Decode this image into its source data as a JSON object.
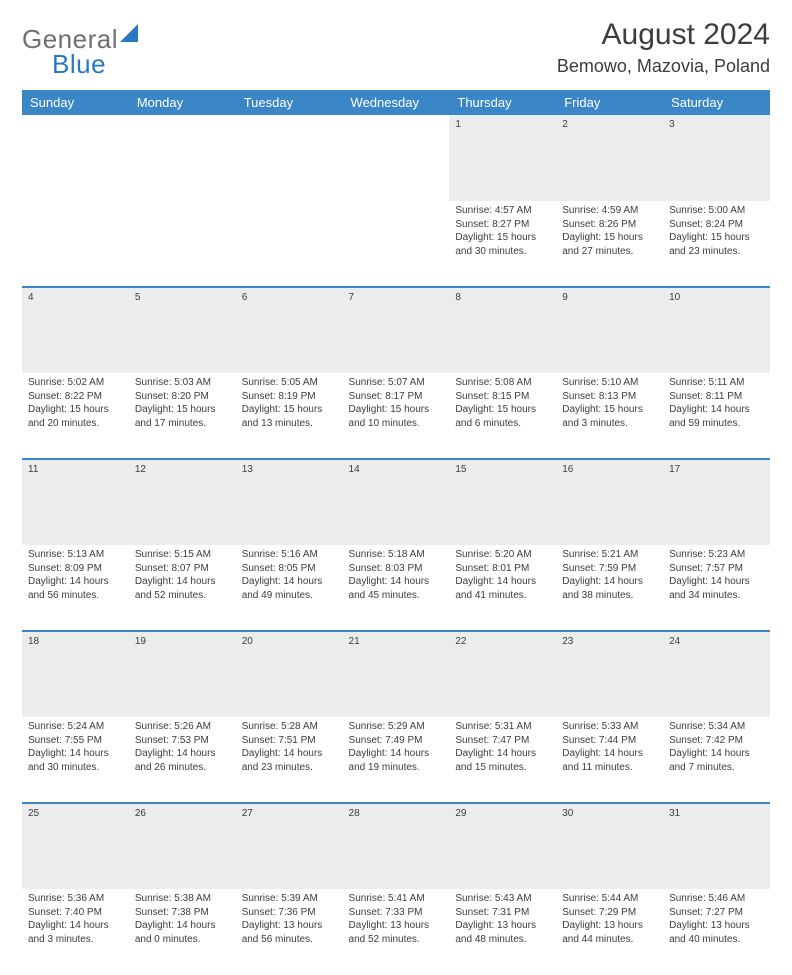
{
  "logo": {
    "part1": "General",
    "part2": "Blue"
  },
  "title": "August 2024",
  "location": "Bemowo, Mazovia, Poland",
  "colors": {
    "header_bg": "#3b86c6",
    "daynum_bg": "#ececec",
    "row_divider": "#3b86c6",
    "text": "#3d3d3d",
    "logo_gray": "#6f6f6f",
    "logo_blue": "#2b78c2",
    "background": "#ffffff"
  },
  "weekdays": [
    "Sunday",
    "Monday",
    "Tuesday",
    "Wednesday",
    "Thursday",
    "Friday",
    "Saturday"
  ],
  "weeks": [
    {
      "nums": [
        "",
        "",
        "",
        "",
        "1",
        "2",
        "3"
      ],
      "cells": [
        "",
        "",
        "",
        "",
        "Sunrise: 4:57 AM\nSunset: 8:27 PM\nDaylight: 15 hours and 30 minutes.",
        "Sunrise: 4:59 AM\nSunset: 8:26 PM\nDaylight: 15 hours and 27 minutes.",
        "Sunrise: 5:00 AM\nSunset: 8:24 PM\nDaylight: 15 hours and 23 minutes."
      ]
    },
    {
      "nums": [
        "4",
        "5",
        "6",
        "7",
        "8",
        "9",
        "10"
      ],
      "cells": [
        "Sunrise: 5:02 AM\nSunset: 8:22 PM\nDaylight: 15 hours and 20 minutes.",
        "Sunrise: 5:03 AM\nSunset: 8:20 PM\nDaylight: 15 hours and 17 minutes.",
        "Sunrise: 5:05 AM\nSunset: 8:19 PM\nDaylight: 15 hours and 13 minutes.",
        "Sunrise: 5:07 AM\nSunset: 8:17 PM\nDaylight: 15 hours and 10 minutes.",
        "Sunrise: 5:08 AM\nSunset: 8:15 PM\nDaylight: 15 hours and 6 minutes.",
        "Sunrise: 5:10 AM\nSunset: 8:13 PM\nDaylight: 15 hours and 3 minutes.",
        "Sunrise: 5:11 AM\nSunset: 8:11 PM\nDaylight: 14 hours and 59 minutes."
      ]
    },
    {
      "nums": [
        "11",
        "12",
        "13",
        "14",
        "15",
        "16",
        "17"
      ],
      "cells": [
        "Sunrise: 5:13 AM\nSunset: 8:09 PM\nDaylight: 14 hours and 56 minutes.",
        "Sunrise: 5:15 AM\nSunset: 8:07 PM\nDaylight: 14 hours and 52 minutes.",
        "Sunrise: 5:16 AM\nSunset: 8:05 PM\nDaylight: 14 hours and 49 minutes.",
        "Sunrise: 5:18 AM\nSunset: 8:03 PM\nDaylight: 14 hours and 45 minutes.",
        "Sunrise: 5:20 AM\nSunset: 8:01 PM\nDaylight: 14 hours and 41 minutes.",
        "Sunrise: 5:21 AM\nSunset: 7:59 PM\nDaylight: 14 hours and 38 minutes.",
        "Sunrise: 5:23 AM\nSunset: 7:57 PM\nDaylight: 14 hours and 34 minutes."
      ]
    },
    {
      "nums": [
        "18",
        "19",
        "20",
        "21",
        "22",
        "23",
        "24"
      ],
      "cells": [
        "Sunrise: 5:24 AM\nSunset: 7:55 PM\nDaylight: 14 hours and 30 minutes.",
        "Sunrise: 5:26 AM\nSunset: 7:53 PM\nDaylight: 14 hours and 26 minutes.",
        "Sunrise: 5:28 AM\nSunset: 7:51 PM\nDaylight: 14 hours and 23 minutes.",
        "Sunrise: 5:29 AM\nSunset: 7:49 PM\nDaylight: 14 hours and 19 minutes.",
        "Sunrise: 5:31 AM\nSunset: 7:47 PM\nDaylight: 14 hours and 15 minutes.",
        "Sunrise: 5:33 AM\nSunset: 7:44 PM\nDaylight: 14 hours and 11 minutes.",
        "Sunrise: 5:34 AM\nSunset: 7:42 PM\nDaylight: 14 hours and 7 minutes."
      ]
    },
    {
      "nums": [
        "25",
        "26",
        "27",
        "28",
        "29",
        "30",
        "31"
      ],
      "cells": [
        "Sunrise: 5:36 AM\nSunset: 7:40 PM\nDaylight: 14 hours and 3 minutes.",
        "Sunrise: 5:38 AM\nSunset: 7:38 PM\nDaylight: 14 hours and 0 minutes.",
        "Sunrise: 5:39 AM\nSunset: 7:36 PM\nDaylight: 13 hours and 56 minutes.",
        "Sunrise: 5:41 AM\nSunset: 7:33 PM\nDaylight: 13 hours and 52 minutes.",
        "Sunrise: 5:43 AM\nSunset: 7:31 PM\nDaylight: 13 hours and 48 minutes.",
        "Sunrise: 5:44 AM\nSunset: 7:29 PM\nDaylight: 13 hours and 44 minutes.",
        "Sunrise: 5:46 AM\nSunset: 7:27 PM\nDaylight: 13 hours and 40 minutes."
      ]
    }
  ]
}
